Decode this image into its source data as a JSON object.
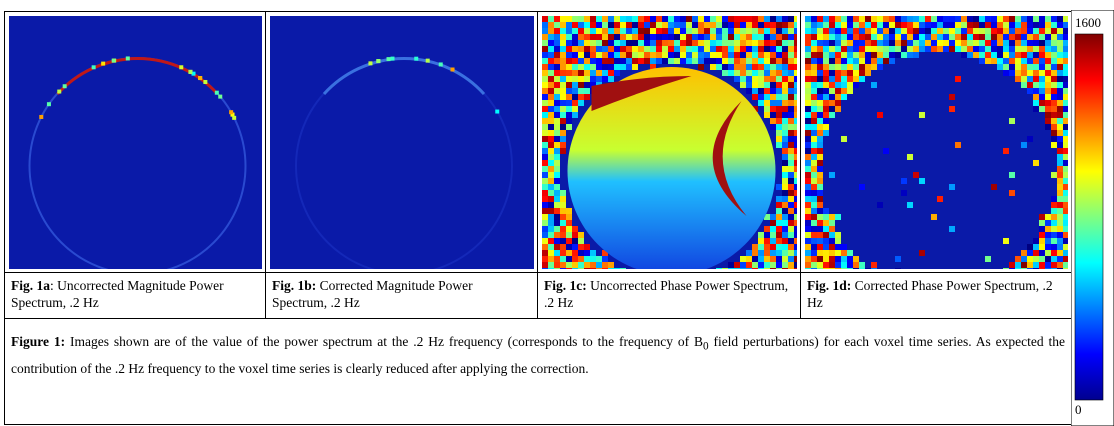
{
  "panels": [
    {
      "label": "Fig. 1a",
      "caption": ": Uncorrected Magnitude Power Spectrum, .2 Hz"
    },
    {
      "label": "Fig. 1b:",
      "caption": " Corrected Magnitude Power  Spectrum, .2 Hz"
    },
    {
      "label": "Fig. 1c:",
      "caption": " Uncorrected Phase Power Spectrum, .2 Hz"
    },
    {
      "label": "Fig. 1d:",
      "caption": " Corrected Phase Power Spectrum, .2 Hz"
    }
  ],
  "figure_caption": {
    "label": "Figure 1:",
    "text": "  Images shown are of the value of the power spectrum at the .2 Hz frequency (corresponds to the frequency of B",
    "subscript": "0",
    "text_after": " field perturbations) for each voxel time series.  As expected the contribution of the .2 Hz frequency to the voxel time series is clearly reduced after applying the correction."
  },
  "colorbar": {
    "max": 1600,
    "min": 0
  }
}
